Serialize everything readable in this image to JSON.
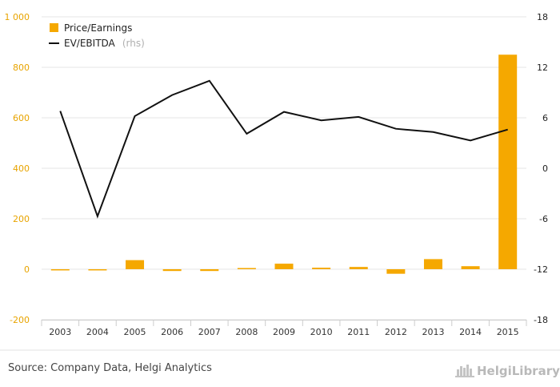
{
  "chart_data": {
    "type": "bar+line",
    "categories": [
      "2003",
      "2004",
      "2005",
      "2006",
      "2007",
      "2008",
      "2009",
      "2010",
      "2011",
      "2012",
      "2013",
      "2014",
      "2015"
    ],
    "series": [
      {
        "name": "Price/Earnings",
        "type": "bar",
        "axis": "left",
        "color": "#f5a800",
        "values": [
          -3,
          -3,
          36,
          -7,
          -7,
          2,
          22,
          6,
          9,
          -18,
          40,
          12,
          850
        ]
      },
      {
        "name": "EV/EBITDA",
        "name_suffix": "(rhs)",
        "type": "line",
        "axis": "right",
        "color": "#111111",
        "values": [
          6.8,
          -5.7,
          6.2,
          8.7,
          10.4,
          4.1,
          6.7,
          5.7,
          6.1,
          4.7,
          4.3,
          3.3,
          4.6
        ]
      }
    ],
    "left_axis": {
      "min": -200,
      "max": 1000,
      "ticks": [
        "-200",
        "0",
        "200",
        "400",
        "600",
        "800",
        "1 000"
      ],
      "color": "#e8a400"
    },
    "right_axis": {
      "min": -18,
      "max": 18,
      "ticks": [
        "-18",
        "-12",
        "-6",
        "0",
        "6",
        "12",
        "18"
      ]
    },
    "grid": true,
    "legend_position": "top-left"
  },
  "source": "Source: Company Data, Helgi Analytics",
  "logo": {
    "text": "HelgiLibrary",
    "icon": "helgi-library-icon"
  }
}
